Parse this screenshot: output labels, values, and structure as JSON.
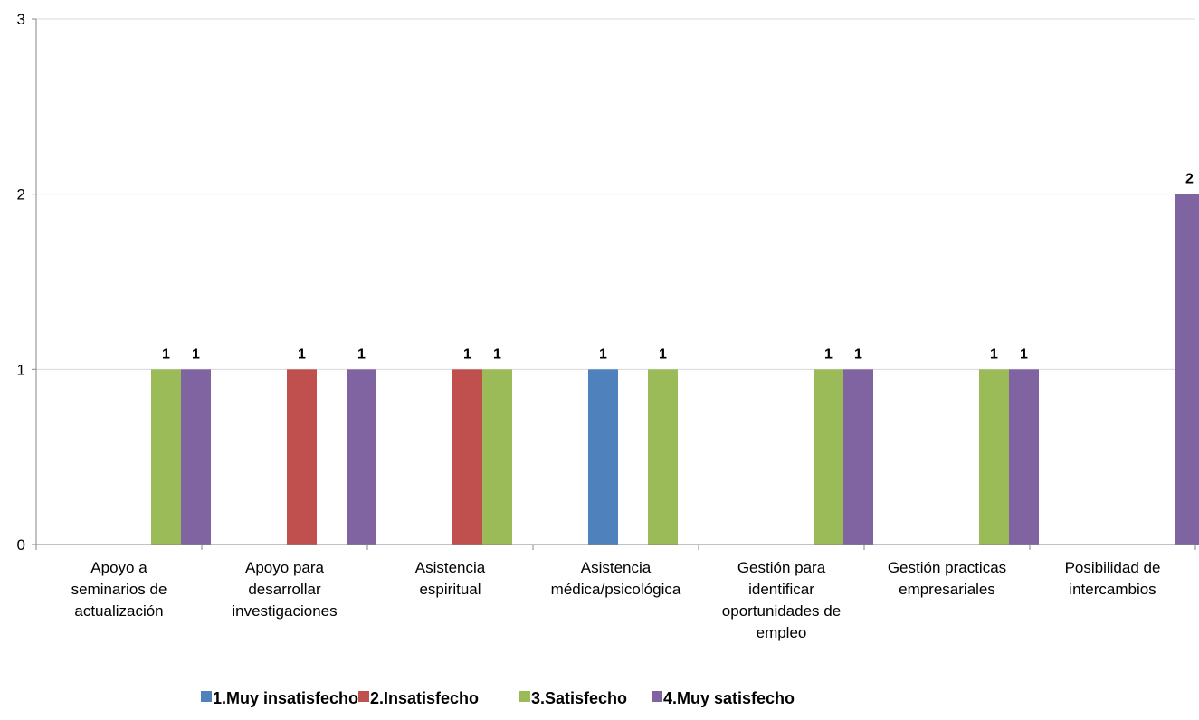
{
  "chart_data": {
    "type": "bar",
    "categories": [
      [
        "Apoyo a",
        "seminarios de",
        "actualización"
      ],
      [
        "Apoyo para",
        "desarrollar",
        "investigaciones"
      ],
      [
        "Asistencia",
        "espiritual"
      ],
      [
        "Asistencia",
        "médica/psicológica"
      ],
      [
        "Gestión para",
        "identificar",
        "oportunidades de",
        "empleo"
      ],
      [
        "Gestión practicas",
        "empresariales"
      ],
      [
        "Posibilidad de",
        "intercambios"
      ]
    ],
    "series": [
      {
        "name": "1.Muy insatisfecho",
        "color": "#4f81bd",
        "values": [
          null,
          null,
          null,
          1,
          null,
          null,
          null
        ]
      },
      {
        "name": "2.Insatisfecho",
        "color": "#c0504d",
        "values": [
          null,
          1,
          1,
          null,
          null,
          null,
          null
        ]
      },
      {
        "name": "3.Satisfecho",
        "color": "#9bbb59",
        "values": [
          1,
          null,
          1,
          1,
          1,
          1,
          null
        ]
      },
      {
        "name": "4.Muy satisfecho",
        "color": "#8064a2",
        "values": [
          1,
          1,
          null,
          null,
          1,
          1,
          2
        ]
      }
    ],
    "ylim": [
      0,
      3
    ],
    "yticks": [
      0,
      1,
      2,
      3
    ],
    "grid": true,
    "legend": "bottom",
    "data_labels": true
  }
}
